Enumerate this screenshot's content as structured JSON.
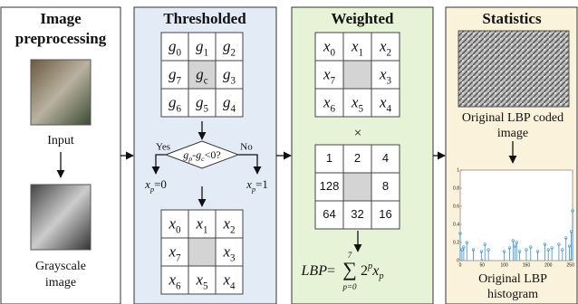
{
  "panels": {
    "preprocessing": {
      "title_lines": [
        "Image",
        "preprocessing"
      ],
      "input_caption": "Input",
      "gray_caption_lines": [
        "Grayscale",
        "image"
      ]
    },
    "thresholded": {
      "title": "Thresholded",
      "grid": [
        [
          {
            "b": "g",
            "s": "0"
          },
          {
            "b": "g",
            "s": "1"
          },
          {
            "b": "g",
            "s": "2"
          }
        ],
        [
          {
            "b": "g",
            "s": "7"
          },
          {
            "b": "g",
            "s": "c"
          },
          {
            "b": "g",
            "s": "3"
          }
        ],
        [
          {
            "b": "g",
            "s": "6"
          },
          {
            "b": "g",
            "s": "5"
          },
          {
            "b": "g",
            "s": "4"
          }
        ]
      ],
      "condition": {
        "a": "g",
        "a_sub": "p",
        "op": "-",
        "b": "g",
        "b_sub": "c",
        "rest": "<0?"
      },
      "yes": "Yes",
      "no": "No",
      "yes_out": {
        "b": "x",
        "s": "p",
        "rest": "=0"
      },
      "no_out": {
        "b": "x",
        "s": "p",
        "rest": "=1"
      },
      "result": [
        [
          {
            "b": "x",
            "s": "0"
          },
          {
            "b": "x",
            "s": "1"
          },
          {
            "b": "x",
            "s": "2"
          }
        ],
        [
          {
            "b": "x",
            "s": "7"
          },
          null,
          {
            "b": "x",
            "s": "3"
          }
        ],
        [
          {
            "b": "x",
            "s": "6"
          },
          {
            "b": "x",
            "s": "5"
          },
          {
            "b": "x",
            "s": "4"
          }
        ]
      ]
    },
    "weighted": {
      "title": "Weighted",
      "grid": [
        [
          {
            "b": "x",
            "s": "0"
          },
          {
            "b": "x",
            "s": "1"
          },
          {
            "b": "x",
            "s": "2"
          }
        ],
        [
          {
            "b": "x",
            "s": "7"
          },
          null,
          {
            "b": "x",
            "s": "3"
          }
        ],
        [
          {
            "b": "x",
            "s": "6"
          },
          {
            "b": "x",
            "s": "5"
          },
          {
            "b": "x",
            "s": "4"
          }
        ]
      ],
      "times": "×",
      "weights": [
        [
          1,
          2,
          4
        ],
        [
          128,
          null,
          8
        ],
        [
          64,
          32,
          16
        ]
      ],
      "formula": {
        "lhs": "LBP",
        "eq": "=",
        "sum": "∑",
        "upper": "7",
        "lower": "p=0",
        "base": "2",
        "exp": "p",
        "var": "x",
        "var_sub": "p"
      }
    },
    "statistics": {
      "title": "Statistics",
      "coded_caption_lines": [
        "Original LBP coded",
        "image"
      ],
      "histogram_caption_lines": [
        "Original LBP",
        "histogram"
      ],
      "histogram": {
        "xlim": [
          0,
          255
        ],
        "ylim": [
          0,
          1
        ],
        "xticks": [
          0,
          50,
          100,
          150,
          200,
          250
        ],
        "yticks": [
          0,
          0.2,
          0.4,
          0.6,
          0.8,
          1
        ],
        "x": [
          0,
          4,
          8,
          15,
          30,
          48,
          56,
          64,
          100,
          112,
          120,
          124,
          128,
          135,
          150,
          160,
          176,
          192,
          200,
          208,
          224,
          232,
          240,
          248,
          252,
          255
        ],
        "values": [
          0.3,
          0.12,
          0.15,
          0.2,
          0.12,
          0.1,
          0.18,
          0.12,
          0.1,
          0.14,
          0.22,
          0.16,
          0.2,
          0.1,
          0.12,
          0.15,
          0.1,
          0.18,
          0.12,
          0.14,
          0.18,
          0.12,
          0.25,
          0.16,
          0.32,
          0.55
        ]
      }
    }
  }
}
